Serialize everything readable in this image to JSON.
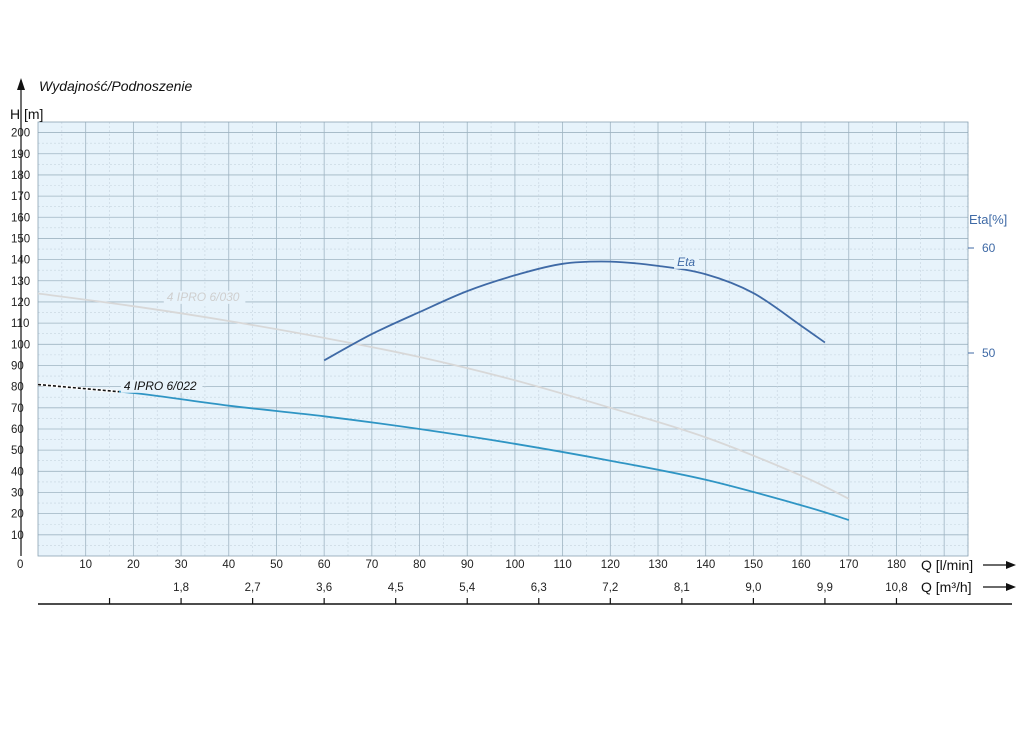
{
  "chart_data": {
    "type": "line",
    "title": "Wydajność/Podnoszenie",
    "ylabel": "H [m]",
    "ylabel_right": "Eta[%]",
    "xlabel": "Q [l/min]",
    "xlabel2": "Q [m³/h]",
    "xlim": [
      0,
      195
    ],
    "ylim": [
      0,
      205
    ],
    "y2lim": [
      40,
      75
    ],
    "grid": true,
    "y_ticks": [
      10,
      20,
      30,
      40,
      50,
      60,
      70,
      80,
      90,
      100,
      110,
      120,
      130,
      140,
      150,
      160,
      170,
      180,
      190,
      200
    ],
    "y_zero_label": "0",
    "x_ticks": [
      10,
      20,
      30,
      40,
      50,
      60,
      70,
      80,
      90,
      100,
      110,
      120,
      130,
      140,
      150,
      160,
      170,
      180
    ],
    "x2_ticks": [
      {
        "q": 30,
        "label": "1,8"
      },
      {
        "q": 45,
        "label": "2,7"
      },
      {
        "q": 60,
        "label": "3,6"
      },
      {
        "q": 75,
        "label": "4,5"
      },
      {
        "q": 90,
        "label": "5,4"
      },
      {
        "q": 105,
        "label": "6,3"
      },
      {
        "q": 120,
        "label": "7,2"
      },
      {
        "q": 135,
        "label": "8,1"
      },
      {
        "q": 150,
        "label": "9,0"
      },
      {
        "q": 165,
        "label": "9,9"
      },
      {
        "q": 180,
        "label": "10,8"
      }
    ],
    "eta_ticks": [
      {
        "value": 50,
        "label": "50"
      },
      {
        "value": 60,
        "label": "60"
      }
    ],
    "series": [
      {
        "name": "4 IPRO 6/030",
        "color": "#d8d8d8",
        "label_at": {
          "x": 27,
          "y": 121
        },
        "x": [
          0,
          20,
          40,
          60,
          80,
          100,
          120,
          140,
          160,
          170
        ],
        "y": [
          124,
          118,
          111,
          103,
          94,
          83,
          70,
          56,
          38,
          27
        ]
      },
      {
        "name": "4 IPRO 6/022",
        "color": "#2f95c4",
        "dashed_color": "#111111",
        "dashed_until": 17,
        "label_at": {
          "x": 18,
          "y": 79
        },
        "x": [
          0,
          20,
          40,
          60,
          80,
          100,
          120,
          140,
          160,
          170
        ],
        "y": [
          81,
          77,
          71,
          66,
          60,
          53,
          45,
          36,
          24,
          17
        ]
      },
      {
        "name": "Eta",
        "axis": "eta",
        "color": "#3f6aa6",
        "label_at": {
          "x": 134,
          "y": 145
        },
        "x": [
          60,
          70,
          80,
          90,
          100,
          110,
          120,
          130,
          140,
          150,
          160,
          165
        ],
        "y": [
          49.3,
          51.8,
          53.9,
          55.9,
          57.4,
          58.5,
          58.7,
          58.3,
          57.5,
          55.7,
          52.6,
          51.0
        ]
      }
    ]
  }
}
